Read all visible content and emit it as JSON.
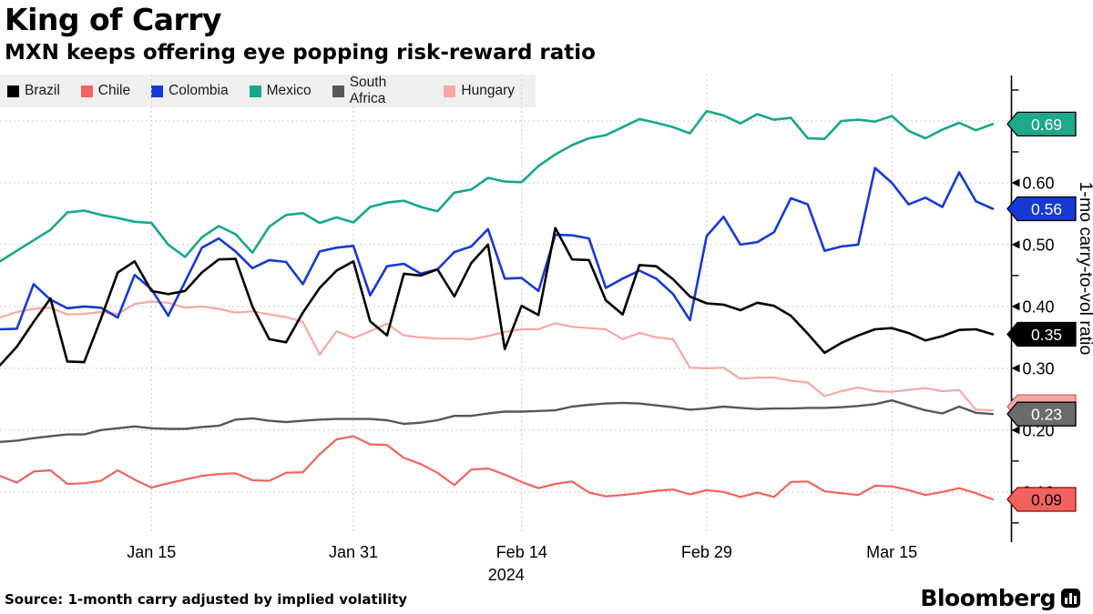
{
  "header": {
    "title": "King of Carry",
    "subtitle": "MXN keeps offering eye popping risk-reward ratio"
  },
  "legend": {
    "items": [
      {
        "label": "Brazil",
        "color": "#000000"
      },
      {
        "label": "Chile",
        "color": "#f4625d"
      },
      {
        "label": "Colombia",
        "color": "#1639d6"
      },
      {
        "label": "Mexico",
        "color": "#17a78a"
      },
      {
        "label": "South Africa",
        "color": "#575757"
      },
      {
        "label": "Hungary",
        "color": "#f8a7a2"
      }
    ]
  },
  "chart_data": {
    "type": "line",
    "title": "King of Carry",
    "subtitle": "MXN keeps offering eye popping risk-reward ratio",
    "ylabel": "1-mo carry-to-vol ratio",
    "xlabel": "",
    "ylim": [
      0.035,
      0.775
    ],
    "grid": true,
    "y_gridlines": [
      0.1,
      0.2,
      0.3,
      0.4,
      0.5,
      0.6,
      0.7
    ],
    "y_ticks_labeled": [
      {
        "v": 0.6,
        "label": "0.60"
      },
      {
        "v": 0.5,
        "label": "0.50"
      },
      {
        "v": 0.4,
        "label": "0.40"
      },
      {
        "v": 0.3,
        "label": "0.30"
      },
      {
        "v": 0.2,
        "label": "0.20"
      },
      {
        "v": 0.1,
        "label": "0.10"
      }
    ],
    "y_ticks_minor": [
      0.75,
      0.7,
      0.65,
      0.55,
      0.45,
      0.35,
      0.25,
      0.15,
      0.05
    ],
    "x_axis": {
      "year": "2024",
      "labels": [
        {
          "text": "Jan 15",
          "index": 9
        },
        {
          "text": "Jan 31",
          "index": 21
        },
        {
          "text": "Feb 14",
          "index": 31
        },
        {
          "text": "Feb 29",
          "index": 42
        },
        {
          "text": "Mar 15",
          "index": 53
        }
      ]
    },
    "series": [
      {
        "name": "Chile",
        "color": "#f4625d",
        "width": 2.2,
        "badge": {
          "label": "0.09",
          "order": 6,
          "fill": "#f4625d",
          "text_color": "#000000",
          "stroke": "#7e120c",
          "dy": 0,
          "hide_label": false
        },
        "values": [
          0.126,
          0.115,
          0.133,
          0.135,
          0.113,
          0.114,
          0.118,
          0.135,
          0.12,
          0.107,
          0.114,
          0.12,
          0.126,
          0.129,
          0.13,
          0.119,
          0.118,
          0.131,
          0.132,
          0.161,
          0.185,
          0.19,
          0.177,
          0.176,
          0.155,
          0.145,
          0.131,
          0.111,
          0.136,
          0.138,
          0.128,
          0.116,
          0.106,
          0.113,
          0.117,
          0.099,
          0.093,
          0.095,
          0.098,
          0.102,
          0.104,
          0.096,
          0.103,
          0.1,
          0.092,
          0.099,
          0.092,
          0.116,
          0.117,
          0.101,
          0.098,
          0.095,
          0.11,
          0.109,
          0.103,
          0.095,
          0.1,
          0.106,
          0.098,
          0.088
        ]
      },
      {
        "name": "South Africa",
        "color": "#575757",
        "width": 2.4,
        "badge": {
          "label": "0.23",
          "order": 2,
          "fill": "#6b6b6b",
          "text_color": "#ffffff",
          "stroke": "#000000",
          "dy": 0,
          "hide_label": false
        },
        "values": [
          0.181,
          0.183,
          0.187,
          0.19,
          0.193,
          0.193,
          0.2,
          0.203,
          0.206,
          0.203,
          0.202,
          0.202,
          0.205,
          0.207,
          0.217,
          0.219,
          0.215,
          0.213,
          0.215,
          0.217,
          0.218,
          0.218,
          0.218,
          0.216,
          0.21,
          0.212,
          0.216,
          0.223,
          0.223,
          0.227,
          0.23,
          0.23,
          0.231,
          0.232,
          0.238,
          0.241,
          0.243,
          0.244,
          0.243,
          0.24,
          0.237,
          0.233,
          0.235,
          0.238,
          0.236,
          0.234,
          0.235,
          0.235,
          0.236,
          0.236,
          0.237,
          0.239,
          0.242,
          0.248,
          0.24,
          0.232,
          0.227,
          0.238,
          0.228,
          0.226
        ]
      },
      {
        "name": "Hungary",
        "color": "#f8a7a2",
        "width": 2.2,
        "badge": {
          "label": "0.23",
          "order": 1,
          "fill": "#f8a7a2",
          "text_color": "#000000",
          "stroke": "#c96b66",
          "dy": -4,
          "hide_label": true
        },
        "values": [
          0.382,
          0.391,
          0.396,
          0.398,
          0.387,
          0.388,
          0.391,
          0.388,
          0.404,
          0.408,
          0.406,
          0.398,
          0.4,
          0.396,
          0.39,
          0.392,
          0.387,
          0.383,
          0.375,
          0.322,
          0.36,
          0.349,
          0.36,
          0.372,
          0.353,
          0.35,
          0.348,
          0.348,
          0.347,
          0.352,
          0.359,
          0.363,
          0.363,
          0.373,
          0.367,
          0.365,
          0.363,
          0.347,
          0.357,
          0.35,
          0.347,
          0.301,
          0.3,
          0.301,
          0.283,
          0.285,
          0.285,
          0.28,
          0.277,
          0.255,
          0.263,
          0.269,
          0.263,
          0.262,
          0.265,
          0.268,
          0.263,
          0.265,
          0.233,
          0.232
        ]
      },
      {
        "name": "Colombia",
        "color": "#1639d6",
        "width": 2.6,
        "badge": {
          "label": "0.56",
          "order": 4,
          "fill": "#1639d6",
          "text_color": "#ffffff",
          "stroke": "#000000",
          "dy": 0,
          "hide_label": false
        },
        "values": [
          0.363,
          0.364,
          0.436,
          0.411,
          0.397,
          0.4,
          0.398,
          0.382,
          0.451,
          0.428,
          0.385,
          0.44,
          0.495,
          0.51,
          0.489,
          0.462,
          0.475,
          0.472,
          0.436,
          0.489,
          0.495,
          0.498,
          0.418,
          0.465,
          0.469,
          0.453,
          0.46,
          0.488,
          0.497,
          0.525,
          0.445,
          0.446,
          0.425,
          0.516,
          0.515,
          0.51,
          0.43,
          0.445,
          0.458,
          0.445,
          0.42,
          0.378,
          0.514,
          0.545,
          0.5,
          0.504,
          0.52,
          0.575,
          0.565,
          0.49,
          0.497,
          0.5,
          0.624,
          0.6,
          0.565,
          0.576,
          0.561,
          0.617,
          0.57,
          0.558
        ]
      },
      {
        "name": "Brazil",
        "color": "#000000",
        "width": 2.6,
        "badge": {
          "label": "0.35",
          "order": 5,
          "fill": "#000000",
          "text_color": "#ffffff",
          "stroke": "#000000",
          "dy": 0,
          "hide_label": false
        },
        "values": [
          0.305,
          0.335,
          0.375,
          0.413,
          0.311,
          0.31,
          0.38,
          0.455,
          0.473,
          0.425,
          0.42,
          0.425,
          0.455,
          0.476,
          0.477,
          0.4,
          0.347,
          0.342,
          0.39,
          0.43,
          0.458,
          0.473,
          0.376,
          0.353,
          0.453,
          0.45,
          0.46,
          0.416,
          0.47,
          0.5,
          0.331,
          0.401,
          0.386,
          0.527,
          0.476,
          0.475,
          0.41,
          0.387,
          0.467,
          0.465,
          0.444,
          0.416,
          0.405,
          0.403,
          0.394,
          0.406,
          0.401,
          0.385,
          0.356,
          0.325,
          0.341,
          0.353,
          0.363,
          0.365,
          0.357,
          0.345,
          0.352,
          0.362,
          0.363,
          0.355
        ]
      },
      {
        "name": "Mexico",
        "color": "#17a78a",
        "width": 2.6,
        "badge": {
          "label": "0.69",
          "order": 3,
          "fill": "#1fa88a",
          "text_color": "#ffffff",
          "stroke": "#000000",
          "dy": 0,
          "hide_label": false
        },
        "values": [
          0.473,
          0.49,
          0.507,
          0.524,
          0.552,
          0.555,
          0.548,
          0.543,
          0.537,
          0.535,
          0.5,
          0.48,
          0.512,
          0.53,
          0.517,
          0.487,
          0.529,
          0.548,
          0.551,
          0.535,
          0.544,
          0.536,
          0.561,
          0.568,
          0.571,
          0.561,
          0.554,
          0.584,
          0.589,
          0.608,
          0.602,
          0.601,
          0.627,
          0.646,
          0.661,
          0.672,
          0.677,
          0.69,
          0.703,
          0.697,
          0.69,
          0.68,
          0.716,
          0.709,
          0.696,
          0.711,
          0.702,
          0.705,
          0.672,
          0.671,
          0.7,
          0.702,
          0.699,
          0.708,
          0.684,
          0.672,
          0.686,
          0.697,
          0.685,
          0.695
        ]
      }
    ],
    "layout_hints": {
      "legend_position": "top-left",
      "y_axis_side": "right",
      "grid_style": "dashed"
    }
  },
  "footer": {
    "source": "Source: 1-month carry adjusted by implied volatility",
    "logo_text": "Bloomberg"
  },
  "colors": {
    "background": "#ffffff",
    "gridline": "#cccccc",
    "legend_background": "#efefef",
    "axis": "#000000"
  }
}
